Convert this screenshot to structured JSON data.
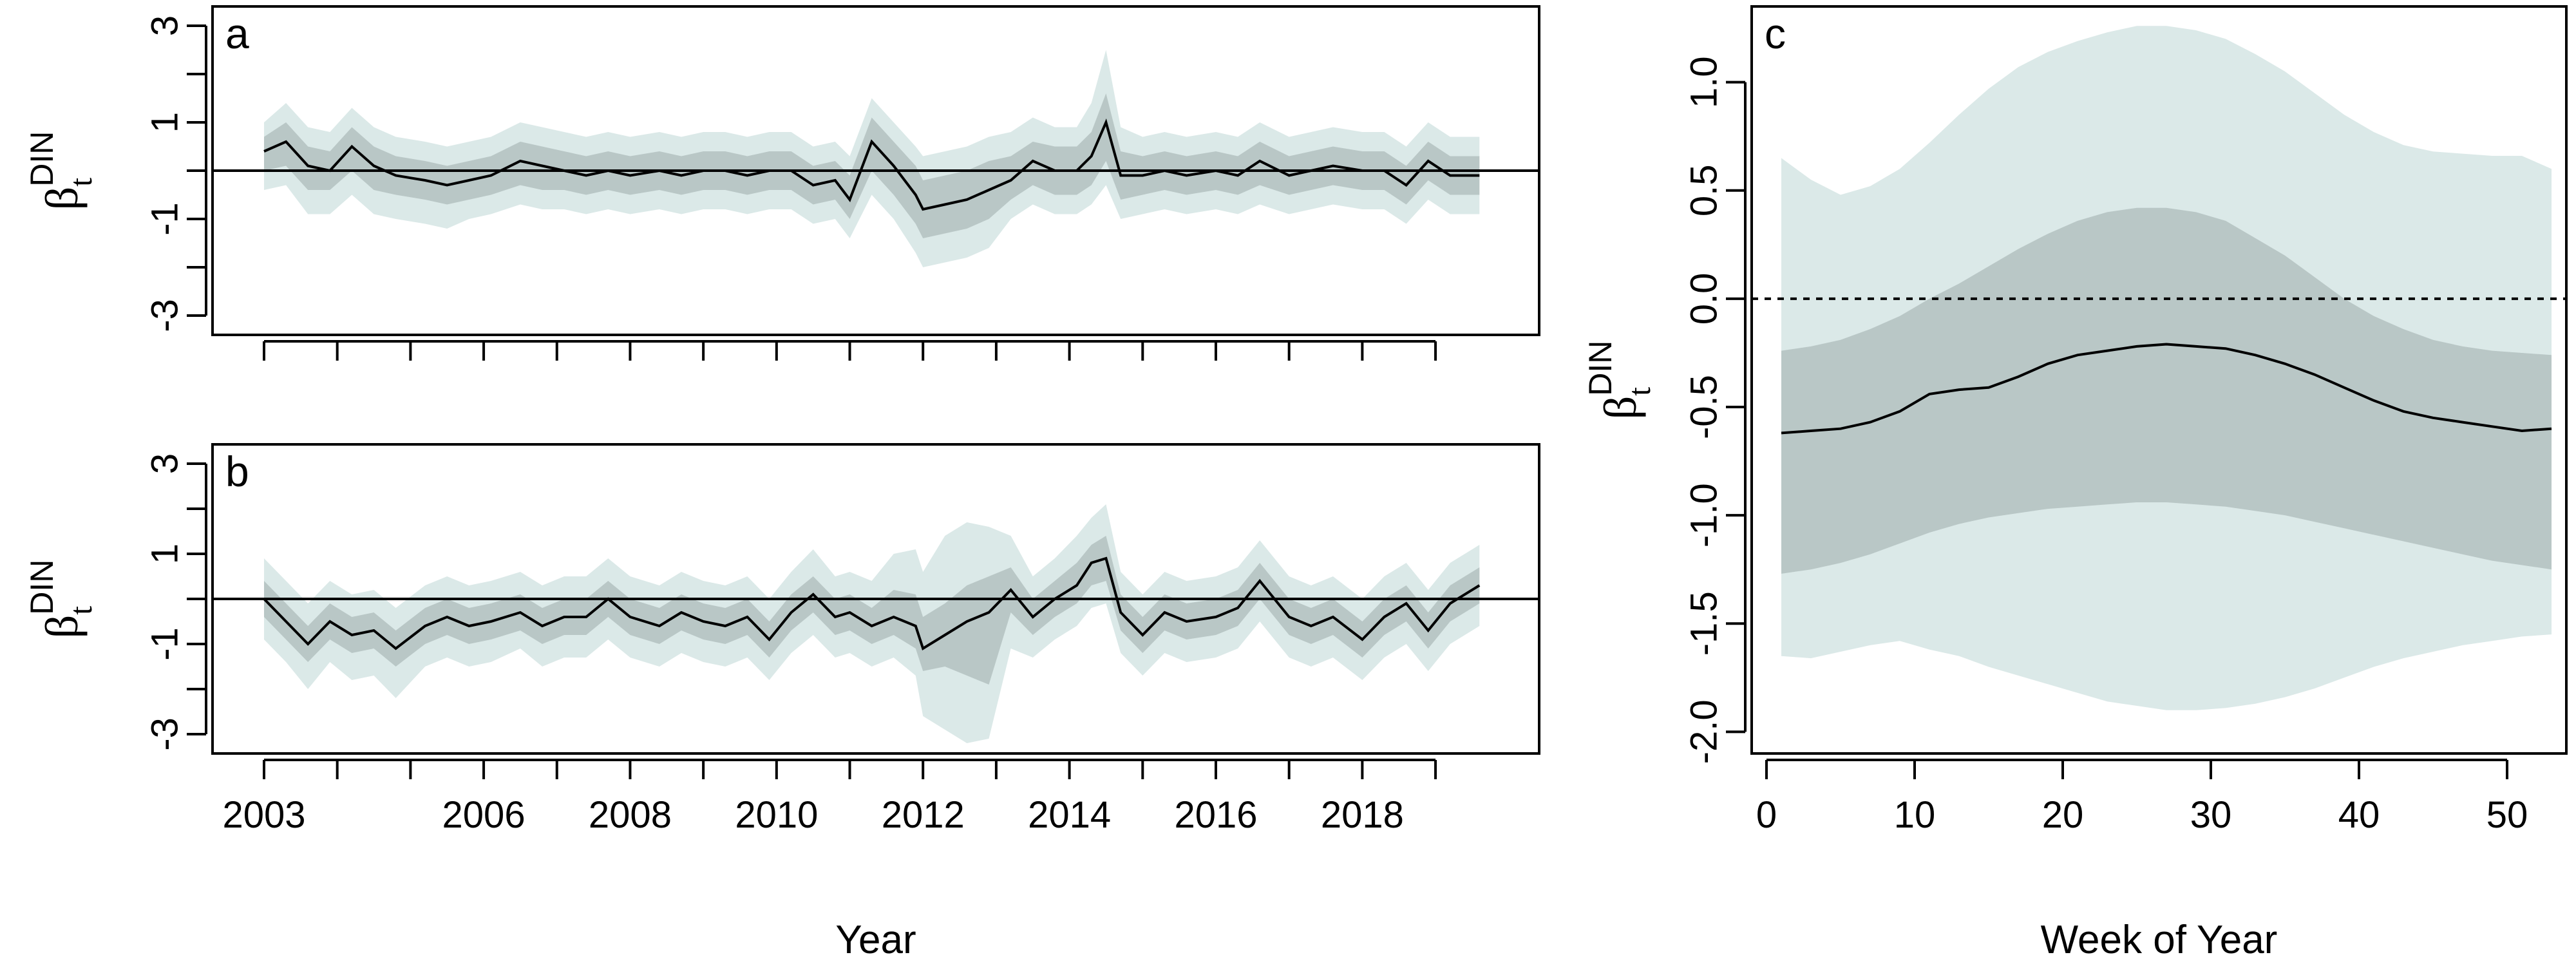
{
  "chart_data": [
    {
      "panel": "a",
      "type": "line",
      "ylabel_symbol": "β",
      "ylabel_sub": "t",
      "ylabel_sup": "DIN",
      "xlabel": "",
      "ylim": [
        -3,
        3
      ],
      "yticks": [
        -3,
        -1,
        1,
        3
      ],
      "xlim": [
        2003,
        2019.8
      ],
      "x_tick_positions": [
        2003,
        2004,
        2005,
        2006,
        2007,
        2008,
        2009,
        2010,
        2011,
        2012,
        2013,
        2014,
        2015,
        2016,
        2017,
        2018,
        2019
      ],
      "x_tick_labels": [],
      "reference_line": 0,
      "x": [
        2003.0,
        2003.3,
        2003.6,
        2003.9,
        2004.2,
        2004.5,
        2004.8,
        2005.2,
        2005.5,
        2005.8,
        2006.1,
        2006.5,
        2006.8,
        2007.1,
        2007.4,
        2007.7,
        2008.0,
        2008.4,
        2008.7,
        2009.0,
        2009.3,
        2009.6,
        2009.9,
        2010.2,
        2010.5,
        2010.8,
        2011.0,
        2011.3,
        2011.6,
        2011.9,
        2012.0,
        2012.3,
        2012.6,
        2012.9,
        2013.2,
        2013.5,
        2013.8,
        2014.1,
        2014.3,
        2014.5,
        2014.7,
        2015.0,
        2015.3,
        2015.6,
        2016.0,
        2016.3,
        2016.6,
        2017.0,
        2017.3,
        2017.6,
        2018.0,
        2018.3,
        2018.6,
        2018.9,
        2019.2,
        2019.6
      ],
      "mean": [
        0.4,
        0.6,
        0.1,
        0.0,
        0.5,
        0.1,
        -0.1,
        -0.2,
        -0.3,
        -0.2,
        -0.1,
        0.2,
        0.1,
        0.0,
        -0.1,
        0.0,
        -0.1,
        0.0,
        -0.1,
        0.0,
        0.0,
        -0.1,
        0.0,
        0.0,
        -0.3,
        -0.2,
        -0.6,
        0.6,
        0.1,
        -0.5,
        -0.8,
        -0.7,
        -0.6,
        -0.4,
        -0.2,
        0.2,
        0.0,
        0.0,
        0.3,
        1.0,
        -0.1,
        -0.1,
        0.0,
        -0.1,
        0.0,
        -0.1,
        0.2,
        -0.1,
        0.0,
        0.1,
        0.0,
        0.0,
        -0.3,
        0.2,
        -0.1,
        -0.1
      ],
      "lower50": [
        0.0,
        0.1,
        -0.4,
        -0.4,
        0.0,
        -0.4,
        -0.5,
        -0.6,
        -0.7,
        -0.6,
        -0.5,
        -0.3,
        -0.4,
        -0.4,
        -0.5,
        -0.4,
        -0.5,
        -0.4,
        -0.5,
        -0.4,
        -0.4,
        -0.5,
        -0.4,
        -0.4,
        -0.7,
        -0.6,
        -1.0,
        0.0,
        -0.5,
        -1.1,
        -1.4,
        -1.3,
        -1.2,
        -1.0,
        -0.6,
        -0.3,
        -0.5,
        -0.5,
        -0.3,
        0.2,
        -0.6,
        -0.5,
        -0.4,
        -0.5,
        -0.4,
        -0.5,
        -0.3,
        -0.5,
        -0.4,
        -0.3,
        -0.4,
        -0.4,
        -0.7,
        -0.2,
        -0.5,
        -0.5
      ],
      "upper50": [
        0.7,
        1.0,
        0.5,
        0.4,
        0.9,
        0.5,
        0.3,
        0.2,
        0.1,
        0.2,
        0.3,
        0.6,
        0.5,
        0.4,
        0.3,
        0.4,
        0.3,
        0.4,
        0.3,
        0.4,
        0.4,
        0.3,
        0.4,
        0.4,
        0.1,
        0.2,
        -0.1,
        1.1,
        0.6,
        0.1,
        -0.2,
        -0.1,
        0.0,
        0.2,
        0.3,
        0.6,
        0.5,
        0.5,
        0.8,
        1.6,
        0.4,
        0.3,
        0.4,
        0.3,
        0.4,
        0.3,
        0.6,
        0.3,
        0.4,
        0.5,
        0.4,
        0.4,
        0.1,
        0.6,
        0.3,
        0.3
      ],
      "lower95": [
        -0.4,
        -0.3,
        -0.9,
        -0.9,
        -0.5,
        -0.9,
        -1.0,
        -1.1,
        -1.2,
        -1.0,
        -0.9,
        -0.7,
        -0.8,
        -0.8,
        -0.9,
        -0.8,
        -0.9,
        -0.8,
        -0.9,
        -0.8,
        -0.8,
        -0.9,
        -0.8,
        -0.8,
        -1.1,
        -1.0,
        -1.4,
        -0.5,
        -1.0,
        -1.7,
        -2.0,
        -1.9,
        -1.8,
        -1.6,
        -1.0,
        -0.7,
        -0.9,
        -0.9,
        -0.7,
        -0.3,
        -1.0,
        -0.9,
        -0.8,
        -0.9,
        -0.8,
        -0.9,
        -0.7,
        -0.9,
        -0.8,
        -0.7,
        -0.8,
        -0.8,
        -1.1,
        -0.6,
        -0.9,
        -0.9
      ],
      "upper95": [
        1.0,
        1.4,
        0.9,
        0.8,
        1.3,
        0.9,
        0.7,
        0.6,
        0.5,
        0.6,
        0.7,
        1.0,
        0.9,
        0.8,
        0.7,
        0.8,
        0.7,
        0.8,
        0.7,
        0.8,
        0.8,
        0.7,
        0.8,
        0.8,
        0.5,
        0.6,
        0.3,
        1.5,
        1.0,
        0.5,
        0.3,
        0.4,
        0.5,
        0.7,
        0.8,
        1.1,
        0.9,
        0.9,
        1.4,
        2.5,
        0.9,
        0.7,
        0.8,
        0.7,
        0.8,
        0.7,
        1.0,
        0.7,
        0.8,
        0.9,
        0.8,
        0.8,
        0.5,
        1.0,
        0.7,
        0.7
      ]
    },
    {
      "panel": "b",
      "type": "line",
      "ylabel_symbol": "β",
      "ylabel_sub": "t",
      "ylabel_sup": "DIN",
      "xlabel": "Year",
      "ylim": [
        -3,
        3
      ],
      "yticks": [
        -3,
        -1,
        1,
        3
      ],
      "xlim": [
        2003,
        2019.8
      ],
      "x_tick_positions": [
        2003,
        2004,
        2005,
        2006,
        2007,
        2008,
        2009,
        2010,
        2011,
        2012,
        2013,
        2014,
        2015,
        2016,
        2017,
        2018,
        2019
      ],
      "x_tick_labels": [
        "2003",
        "2006",
        "2008",
        "2010",
        "2012",
        "2014",
        "2016",
        "2018"
      ],
      "x_tick_label_positions": [
        2003,
        2006,
        2008,
        2010,
        2012,
        2014,
        2016,
        2018
      ],
      "reference_line": 0,
      "x": [
        2003.0,
        2003.3,
        2003.6,
        2003.9,
        2004.2,
        2004.5,
        2004.8,
        2005.2,
        2005.5,
        2005.8,
        2006.1,
        2006.5,
        2006.8,
        2007.1,
        2007.4,
        2007.7,
        2008.0,
        2008.4,
        2008.7,
        2009.0,
        2009.3,
        2009.6,
        2009.9,
        2010.2,
        2010.5,
        2010.8,
        2011.0,
        2011.3,
        2011.6,
        2011.9,
        2012.0,
        2012.3,
        2012.6,
        2012.9,
        2013.2,
        2013.5,
        2013.8,
        2014.1,
        2014.3,
        2014.5,
        2014.7,
        2015.0,
        2015.3,
        2015.6,
        2016.0,
        2016.3,
        2016.6,
        2017.0,
        2017.3,
        2017.6,
        2018.0,
        2018.3,
        2018.6,
        2018.9,
        2019.2,
        2019.6
      ],
      "mean": [
        0.0,
        -0.5,
        -1.0,
        -0.5,
        -0.8,
        -0.7,
        -1.1,
        -0.6,
        -0.4,
        -0.6,
        -0.5,
        -0.3,
        -0.6,
        -0.4,
        -0.4,
        0.0,
        -0.4,
        -0.6,
        -0.3,
        -0.5,
        -0.6,
        -0.4,
        -0.9,
        -0.3,
        0.1,
        -0.4,
        -0.3,
        -0.6,
        -0.4,
        -0.6,
        -1.1,
        -0.8,
        -0.5,
        -0.3,
        0.2,
        -0.4,
        0.0,
        0.3,
        0.8,
        0.9,
        -0.3,
        -0.8,
        -0.3,
        -0.5,
        -0.4,
        -0.2,
        0.4,
        -0.4,
        -0.6,
        -0.4,
        -0.9,
        -0.4,
        -0.1,
        -0.7,
        -0.1,
        0.3
      ],
      "lower50": [
        -0.4,
        -0.9,
        -1.4,
        -0.9,
        -1.2,
        -1.1,
        -1.5,
        -1.0,
        -0.8,
        -1.0,
        -0.9,
        -0.7,
        -1.0,
        -0.8,
        -0.8,
        -0.4,
        -0.8,
        -1.0,
        -0.7,
        -0.9,
        -1.0,
        -0.8,
        -1.3,
        -0.7,
        -0.3,
        -0.8,
        -0.7,
        -1.0,
        -0.8,
        -1.1,
        -1.6,
        -1.5,
        -1.7,
        -1.9,
        -0.3,
        -0.8,
        -0.4,
        -0.1,
        0.3,
        0.4,
        -0.7,
        -1.2,
        -0.7,
        -0.9,
        -0.8,
        -0.6,
        0.0,
        -0.8,
        -1.0,
        -0.8,
        -1.3,
        -0.8,
        -0.5,
        -1.1,
        -0.5,
        -0.1
      ],
      "upper50": [
        0.4,
        -0.1,
        -0.6,
        -0.1,
        -0.4,
        -0.3,
        -0.7,
        -0.2,
        0.0,
        -0.2,
        -0.1,
        0.1,
        -0.2,
        0.0,
        0.0,
        0.4,
        0.0,
        -0.2,
        0.1,
        -0.1,
        -0.2,
        0.0,
        -0.5,
        0.1,
        0.5,
        0.0,
        0.1,
        -0.2,
        0.2,
        0.1,
        -0.4,
        -0.1,
        0.3,
        0.5,
        0.7,
        0.0,
        0.4,
        0.8,
        1.2,
        1.4,
        0.1,
        -0.4,
        0.1,
        -0.1,
        0.0,
        0.2,
        0.8,
        0.0,
        -0.2,
        0.0,
        -0.5,
        0.0,
        0.3,
        -0.3,
        0.3,
        0.7
      ],
      "lower95": [
        -0.9,
        -1.4,
        -2.0,
        -1.4,
        -1.8,
        -1.7,
        -2.2,
        -1.5,
        -1.3,
        -1.5,
        -1.4,
        -1.1,
        -1.5,
        -1.3,
        -1.3,
        -0.9,
        -1.3,
        -1.5,
        -1.2,
        -1.4,
        -1.5,
        -1.3,
        -1.8,
        -1.2,
        -0.8,
        -1.3,
        -1.2,
        -1.5,
        -1.3,
        -1.7,
        -2.6,
        -2.9,
        -3.2,
        -3.1,
        -1.1,
        -1.3,
        -0.9,
        -0.6,
        -0.2,
        -0.1,
        -1.2,
        -1.7,
        -1.2,
        -1.4,
        -1.3,
        -1.1,
        -0.5,
        -1.3,
        -1.5,
        -1.3,
        -1.8,
        -1.3,
        -1.0,
        -1.6,
        -1.0,
        -0.6
      ],
      "upper95": [
        0.9,
        0.4,
        -0.1,
        0.4,
        0.1,
        0.2,
        -0.2,
        0.3,
        0.5,
        0.3,
        0.4,
        0.6,
        0.3,
        0.5,
        0.5,
        0.9,
        0.5,
        0.3,
        0.6,
        0.4,
        0.3,
        0.5,
        0.0,
        0.6,
        1.1,
        0.5,
        0.6,
        0.4,
        1.0,
        1.1,
        0.6,
        1.4,
        1.7,
        1.6,
        1.4,
        0.5,
        0.9,
        1.4,
        1.8,
        2.1,
        0.6,
        0.1,
        0.6,
        0.4,
        0.5,
        0.7,
        1.3,
        0.5,
        0.3,
        0.5,
        0.0,
        0.5,
        0.8,
        0.2,
        0.8,
        1.2
      ]
    },
    {
      "panel": "c",
      "type": "line",
      "ylabel_symbol": "β",
      "ylabel_sub": "t",
      "ylabel_sup": "DIN",
      "xlabel": "Week of Year",
      "ylim": [
        -2.1,
        1.35
      ],
      "yticks": [
        -2.0,
        -1.5,
        -1.0,
        -0.5,
        0.0,
        0.5,
        1.0
      ],
      "ytick_labels": [
        "-2.0",
        "-1.5",
        "-1.0",
        "-0.5",
        "0.0",
        "0.5",
        "1.0"
      ],
      "xlim": [
        -1,
        54
      ],
      "xticks": [
        0,
        10,
        20,
        30,
        40,
        50
      ],
      "xtick_labels": [
        "0",
        "10",
        "20",
        "30",
        "40",
        "50"
      ],
      "reference_line": 0,
      "reference_style": "dotted",
      "x": [
        1,
        3,
        5,
        7,
        9,
        11,
        13,
        15,
        17,
        19,
        21,
        23,
        25,
        27,
        29,
        31,
        33,
        35,
        37,
        39,
        41,
        43,
        45,
        47,
        49,
        51,
        53
      ],
      "mean": [
        -0.62,
        -0.61,
        -0.6,
        -0.57,
        -0.52,
        -0.44,
        -0.42,
        -0.41,
        -0.36,
        -0.3,
        -0.26,
        -0.24,
        -0.22,
        -0.21,
        -0.22,
        -0.23,
        -0.26,
        -0.3,
        -0.35,
        -0.41,
        -0.47,
        -0.52,
        -0.55,
        -0.57,
        -0.59,
        -0.61,
        -0.6
      ],
      "lower50": [
        -1.27,
        -1.25,
        -1.22,
        -1.18,
        -1.13,
        -1.08,
        -1.04,
        -1.01,
        -0.99,
        -0.97,
        -0.96,
        -0.95,
        -0.94,
        -0.94,
        -0.95,
        -0.96,
        -0.98,
        -1.0,
        -1.03,
        -1.06,
        -1.09,
        -1.12,
        -1.15,
        -1.18,
        -1.21,
        -1.23,
        -1.25
      ],
      "upper50": [
        -0.24,
        -0.22,
        -0.19,
        -0.14,
        -0.08,
        0.0,
        0.07,
        0.15,
        0.23,
        0.3,
        0.36,
        0.4,
        0.42,
        0.42,
        0.4,
        0.36,
        0.28,
        0.2,
        0.1,
        0.0,
        -0.08,
        -0.14,
        -0.19,
        -0.22,
        -0.24,
        -0.25,
        -0.26
      ],
      "lower95": [
        -1.65,
        -1.66,
        -1.63,
        -1.6,
        -1.58,
        -1.62,
        -1.65,
        -1.7,
        -1.74,
        -1.78,
        -1.82,
        -1.86,
        -1.88,
        -1.9,
        -1.9,
        -1.89,
        -1.87,
        -1.84,
        -1.8,
        -1.75,
        -1.7,
        -1.66,
        -1.63,
        -1.6,
        -1.58,
        -1.56,
        -1.55
      ],
      "upper95": [
        0.65,
        0.55,
        0.48,
        0.52,
        0.6,
        0.72,
        0.85,
        0.97,
        1.07,
        1.14,
        1.19,
        1.23,
        1.26,
        1.26,
        1.24,
        1.2,
        1.13,
        1.05,
        0.95,
        0.85,
        0.77,
        0.71,
        0.68,
        0.67,
        0.66,
        0.66,
        0.6
      ]
    }
  ]
}
